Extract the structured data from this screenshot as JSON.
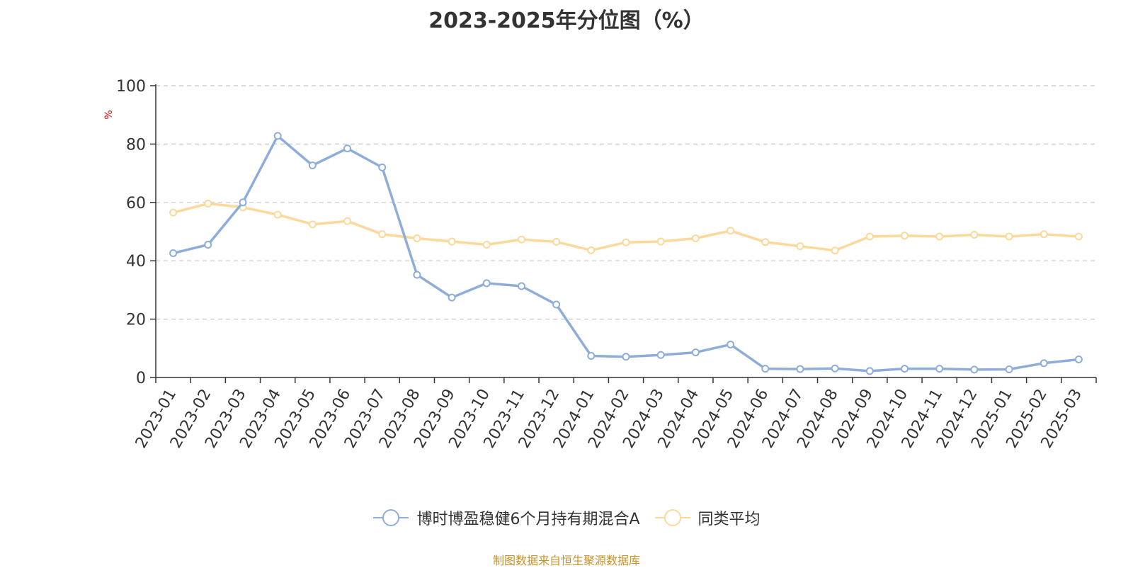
{
  "chart_data": {
    "type": "line",
    "title": "2023-2025年分位图（%）",
    "ylabel": "%",
    "ylim": [
      0,
      100
    ],
    "yticks": [
      0,
      20,
      40,
      60,
      80,
      100
    ],
    "grid": true,
    "legend_position": "bottom-center",
    "categories": [
      "2023-01",
      "2023-02",
      "2023-03",
      "2023-04",
      "2023-05",
      "2023-06",
      "2023-07",
      "2023-08",
      "2023-09",
      "2023-10",
      "2023-11",
      "2023-12",
      "2024-01",
      "2024-02",
      "2024-03",
      "2024-04",
      "2024-05",
      "2024-06",
      "2024-07",
      "2024-08",
      "2024-09",
      "2024-10",
      "2024-11",
      "2024-12",
      "2025-01",
      "2025-02",
      "2025-03"
    ],
    "series": [
      {
        "name": "博时博盈稳健6个月持有期混合A",
        "color": "#8eaed9",
        "values": [
          42.6,
          45.5,
          60.0,
          82.8,
          72.7,
          78.5,
          72.0,
          35.2,
          27.4,
          32.3,
          31.3,
          25.0,
          7.4,
          7.1,
          7.7,
          8.6,
          11.3,
          3.0,
          2.9,
          3.1,
          2.2,
          3.0,
          3.0,
          2.7,
          2.8,
          4.9,
          6.2
        ]
      },
      {
        "name": "同类平均",
        "color": "#fad99a",
        "values": [
          56.5,
          59.6,
          58.3,
          55.8,
          52.5,
          53.6,
          49.1,
          47.7,
          46.6,
          45.5,
          47.3,
          46.5,
          43.6,
          46.3,
          46.6,
          47.7,
          50.3,
          46.4,
          45.0,
          43.5,
          48.3,
          48.6,
          48.3,
          48.9,
          48.3,
          49.1,
          48.3
        ]
      }
    ]
  },
  "footer": {
    "source": "制图数据来自恒生聚源数据库"
  }
}
